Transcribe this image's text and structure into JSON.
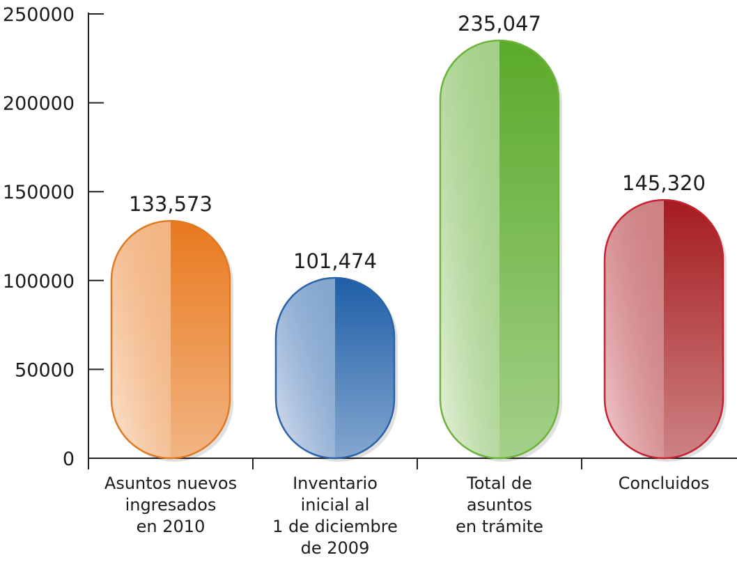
{
  "chart_data": {
    "type": "bar",
    "title": "",
    "xlabel": "",
    "ylabel": "",
    "ylim": [
      0,
      250000
    ],
    "yticks": [
      {
        "value": 0,
        "label": "0"
      },
      {
        "value": 50000,
        "label": "50000"
      },
      {
        "value": 100000,
        "label": "100000"
      },
      {
        "value": 150000,
        "label": "150000"
      },
      {
        "value": 200000,
        "label": "200000"
      },
      {
        "value": 250000,
        "label": "250000"
      }
    ],
    "grid": false,
    "legend": "none",
    "categories": [
      [
        "Asuntos nuevos",
        "ingresados",
        "en 2010"
      ],
      [
        "Inventario",
        "inicial al",
        "1 de diciembre",
        "de 2009"
      ],
      [
        "Total de",
        "asuntos",
        "en trámite"
      ],
      [
        "Concluidos"
      ]
    ],
    "values": [
      133573,
      101474,
      235047,
      145320
    ],
    "value_labels": [
      "133,573",
      "101,474",
      "235,047",
      "145,320"
    ],
    "colors": [
      {
        "dark": "#e8791e",
        "light": "#fbe6d5",
        "border": "#e07a22"
      },
      {
        "dark": "#1f5fa8",
        "light": "#dde3f1",
        "border": "#2c63a8"
      },
      {
        "dark": "#5aaa2a",
        "light": "#e6f1dc",
        "border": "#6cb33a"
      },
      {
        "dark": "#a51c1f",
        "light": "#f2cdd0",
        "border": "#c22232"
      }
    ]
  }
}
